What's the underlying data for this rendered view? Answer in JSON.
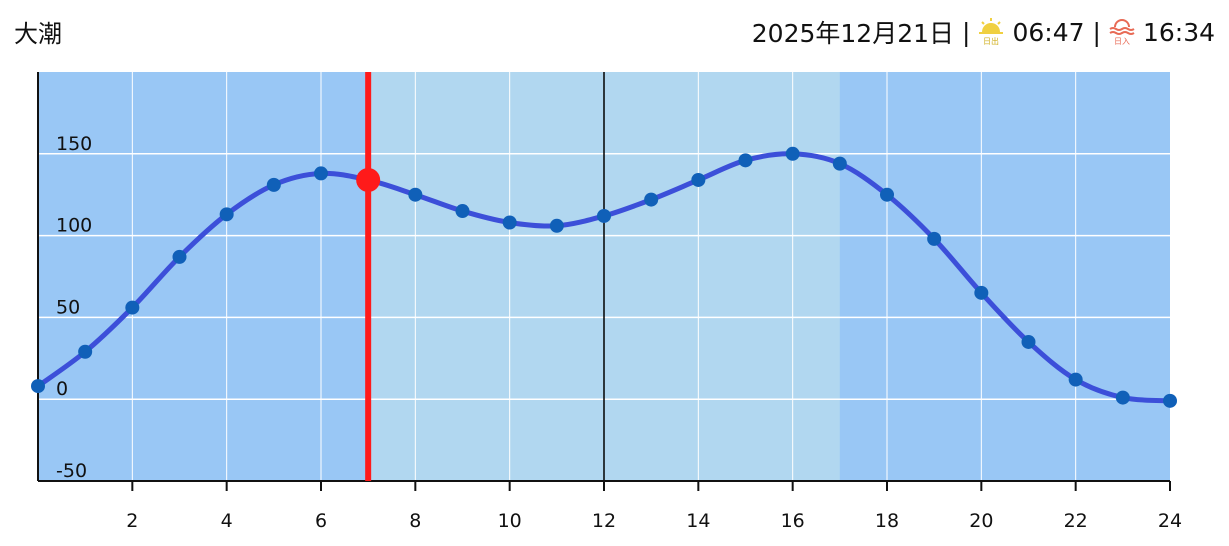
{
  "title": "大潮",
  "header": {
    "date": "2025年12月21日",
    "sep": "|",
    "sunrise_label": "日出",
    "sunrise": "06:47",
    "sunset_label": "日入",
    "sunset": "16:34"
  },
  "colors": {
    "night": "#99c7f5",
    "day": "#b1d7f0",
    "line": "#3c4fd9",
    "point": "#1060b8",
    "current": "#ff1a1a",
    "sunrise_icon": "#f0d040",
    "sunset_icon": "#e86a55"
  },
  "chart_data": {
    "type": "line",
    "title": "",
    "xlabel": "",
    "ylabel": "",
    "xlim": [
      0,
      24
    ],
    "ylim": [
      -50,
      200
    ],
    "xticks": [
      2,
      4,
      6,
      8,
      10,
      12,
      14,
      16,
      18,
      20,
      22,
      24
    ],
    "yticks": [
      -50,
      0,
      50,
      100,
      150
    ],
    "grid": true,
    "day_band": [
      7,
      17
    ],
    "current_time": 7,
    "current_value": 134,
    "noon_line": 12,
    "x": [
      0,
      1,
      2,
      3,
      4,
      5,
      6,
      7,
      8,
      9,
      10,
      11,
      12,
      13,
      14,
      15,
      16,
      17,
      18,
      19,
      20,
      21,
      22,
      23,
      24
    ],
    "values": [
      8,
      29,
      56,
      87,
      113,
      131,
      138,
      134,
      125,
      115,
      108,
      106,
      112,
      122,
      134,
      146,
      150,
      144,
      125,
      98,
      65,
      35,
      12,
      1,
      -1
    ]
  }
}
